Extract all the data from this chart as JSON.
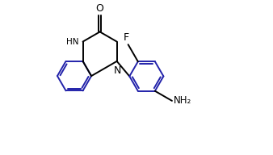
{
  "bg_color": "#ffffff",
  "line_color": "#000000",
  "bond_color": "#2222aa",
  "figsize": [
    3.38,
    1.92
  ],
  "dpi": 100,
  "xlim": [
    -0.3,
    7.2
  ],
  "ylim": [
    1.2,
    8.2
  ]
}
